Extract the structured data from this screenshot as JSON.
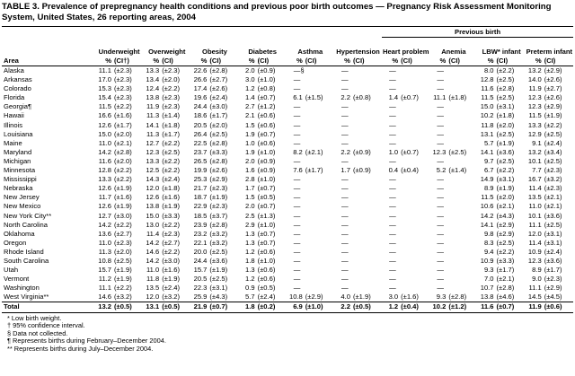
{
  "title": "TABLE 3. Prevalence of prepregnancy health conditions and previous poor birth outcomes — Pregnancy Risk Assessment Monitoring System, United States, 26 reporting areas, 2004",
  "super_header": "Previous birth",
  "area_label": "Area",
  "groups": [
    {
      "name": "Underweight",
      "pct": "%",
      "ci": "(CI†)"
    },
    {
      "name": "Overweight",
      "pct": "%",
      "ci": "(CI)"
    },
    {
      "name": "Obesity",
      "pct": "%",
      "ci": "(CI)"
    },
    {
      "name": "Diabetes",
      "pct": "%",
      "ci": "(CI)"
    },
    {
      "name": "Asthma",
      "pct": "%",
      "ci": "(CI)"
    },
    {
      "name": "Hypertension",
      "pct": "%",
      "ci": "(CI)"
    },
    {
      "name": "Heart problem",
      "pct": "%",
      "ci": "(CI)"
    },
    {
      "name": "Anemia",
      "pct": "%",
      "ci": "(CI)"
    },
    {
      "name": "LBW* infant",
      "pct": "%",
      "ci": "(CI)"
    },
    {
      "name": "Preterm infant",
      "pct": "%",
      "ci": "(CI)"
    }
  ],
  "rows": [
    {
      "area": "Alaska",
      "cells": [
        [
          "11.1",
          "(±2.3)"
        ],
        [
          "13.3",
          "(±2.3)"
        ],
        [
          "22.6",
          "(±2.8)"
        ],
        [
          "2.0",
          "(±0.9)"
        ],
        "—§",
        "—",
        "—",
        "—",
        [
          "8.0",
          "(±2.2)"
        ],
        [
          "13.2",
          "(±2.9)"
        ]
      ]
    },
    {
      "area": "Arkansas",
      "cells": [
        [
          "17.0",
          "(±2.3)"
        ],
        [
          "13.4",
          "(±2.0)"
        ],
        [
          "26.6",
          "(±2.7)"
        ],
        [
          "3.0",
          "(±1.0)"
        ],
        "—",
        "—",
        "—",
        "—",
        [
          "12.8",
          "(±2.5)"
        ],
        [
          "14.0",
          "(±2.6)"
        ]
      ]
    },
    {
      "area": "Colorado",
      "cells": [
        [
          "15.3",
          "(±2.3)"
        ],
        [
          "12.4",
          "(±2.2)"
        ],
        [
          "17.4",
          "(±2.6)"
        ],
        [
          "1.2",
          "(±0.8)"
        ],
        "—",
        "—",
        "—",
        "—",
        [
          "11.6",
          "(±2.8)"
        ],
        [
          "11.9",
          "(±2.7)"
        ]
      ]
    },
    {
      "area": "Florida",
      "cells": [
        [
          "15.4",
          "(±2.3)"
        ],
        [
          "13.8",
          "(±2.3)"
        ],
        [
          "19.6",
          "(±2.4)"
        ],
        [
          "1.4",
          "(±0.7)"
        ],
        [
          "6.1",
          "(±1.5)"
        ],
        [
          "2.2",
          "(±0.8)"
        ],
        [
          "1.4",
          "(±0.7)"
        ],
        [
          "11.1",
          "(±1.8)"
        ],
        [
          "11.5",
          "(±2.5)"
        ],
        [
          "12.3",
          "(±2.6)"
        ]
      ]
    },
    {
      "area": "Georgia¶",
      "cells": [
        [
          "11.5",
          "(±2.2)"
        ],
        [
          "11.9",
          "(±2.3)"
        ],
        [
          "24.4",
          "(±3.0)"
        ],
        [
          "2.7",
          "(±1.2)"
        ],
        "—",
        "—",
        "—",
        "—",
        [
          "15.0",
          "(±3.1)"
        ],
        [
          "12.3",
          "(±2.9)"
        ]
      ]
    },
    {
      "area": "Hawaii",
      "cells": [
        [
          "16.6",
          "(±1.6)"
        ],
        [
          "11.3",
          "(±1.4)"
        ],
        [
          "18.6",
          "(±1.7)"
        ],
        [
          "2.1",
          "(±0.6)"
        ],
        "—",
        "—",
        "—",
        "—",
        [
          "10.2",
          "(±1.8)"
        ],
        [
          "11.5",
          "(±1.9)"
        ]
      ]
    },
    {
      "area": "Illinois",
      "cells": [
        [
          "12.6",
          "(±1.7)"
        ],
        [
          "14.1",
          "(±1.8)"
        ],
        [
          "20.5",
          "(±2.0)"
        ],
        [
          "1.5",
          "(±0.6)"
        ],
        "—",
        "—",
        "—",
        "—",
        [
          "11.8",
          "(±2.0)"
        ],
        [
          "13.3",
          "(±2.2)"
        ]
      ]
    },
    {
      "area": "Louisiana",
      "cells": [
        [
          "15.0",
          "(±2.0)"
        ],
        [
          "11.3",
          "(±1.7)"
        ],
        [
          "26.4",
          "(±2.5)"
        ],
        [
          "1.9",
          "(±0.7)"
        ],
        "—",
        "—",
        "—",
        "—",
        [
          "13.1",
          "(±2.5)"
        ],
        [
          "12.9",
          "(±2.5)"
        ]
      ]
    },
    {
      "area": "Maine",
      "cells": [
        [
          "11.0",
          "(±2.1)"
        ],
        [
          "12.7",
          "(±2.2)"
        ],
        [
          "22.5",
          "(±2.8)"
        ],
        [
          "1.0",
          "(±0.6)"
        ],
        "—",
        "—",
        "—",
        "—",
        [
          "5.7",
          "(±1.9)"
        ],
        [
          "9.1",
          "(±2.4)"
        ]
      ]
    },
    {
      "area": "Maryland",
      "cells": [
        [
          "14.2",
          "(±2.8)"
        ],
        [
          "12.3",
          "(±2.5)"
        ],
        [
          "23.7",
          "(±3.3)"
        ],
        [
          "1.9",
          "(±1.0)"
        ],
        [
          "8.2",
          "(±2.1)"
        ],
        [
          "2.2",
          "(±0.9)"
        ],
        [
          "1.0",
          "(±0.7)"
        ],
        [
          "12.3",
          "(±2.5)"
        ],
        [
          "14.1",
          "(±3.6)"
        ],
        [
          "13.2",
          "(±3.4)"
        ]
      ]
    },
    {
      "area": "Michigan",
      "cells": [
        [
          "11.6",
          "(±2.0)"
        ],
        [
          "13.3",
          "(±2.2)"
        ],
        [
          "26.5",
          "(±2.8)"
        ],
        [
          "2.0",
          "(±0.9)"
        ],
        "—",
        "—",
        "—",
        "—",
        [
          "9.7",
          "(±2.5)"
        ],
        [
          "10.1",
          "(±2.5)"
        ]
      ]
    },
    {
      "area": "Minnesota",
      "cells": [
        [
          "12.8",
          "(±2.2)"
        ],
        [
          "12.5",
          "(±2.2)"
        ],
        [
          "19.9",
          "(±2.6)"
        ],
        [
          "1.6",
          "(±0.9)"
        ],
        [
          "7.6",
          "(±1.7)"
        ],
        [
          "1.7",
          "(±0.9)"
        ],
        [
          "0.4",
          "(±0.4)"
        ],
        [
          "5.2",
          "(±1.4)"
        ],
        [
          "6.7",
          "(±2.2)"
        ],
        [
          "7.7",
          "(±2.3)"
        ]
      ]
    },
    {
      "area": "Mississippi",
      "cells": [
        [
          "13.3",
          "(±2.2)"
        ],
        [
          "14.3",
          "(±2.4)"
        ],
        [
          "25.3",
          "(±2.9)"
        ],
        [
          "2.8",
          "(±1.0)"
        ],
        "—",
        "—",
        "—",
        "—",
        [
          "14.9",
          "(±3.1)"
        ],
        [
          "16.7",
          "(±3.2)"
        ]
      ]
    },
    {
      "area": "Nebraska",
      "cells": [
        [
          "12.6",
          "(±1.9)"
        ],
        [
          "12.0",
          "(±1.8)"
        ],
        [
          "21.7",
          "(±2.3)"
        ],
        [
          "1.7",
          "(±0.7)"
        ],
        "—",
        "—",
        "—",
        "—",
        [
          "8.9",
          "(±1.9)"
        ],
        [
          "11.4",
          "(±2.3)"
        ]
      ]
    },
    {
      "area": "New Jersey",
      "cells": [
        [
          "11.7",
          "(±1.6)"
        ],
        [
          "12.6",
          "(±1.6)"
        ],
        [
          "18.7",
          "(±1.9)"
        ],
        [
          "1.5",
          "(±0.5)"
        ],
        "—",
        "—",
        "—",
        "—",
        [
          "11.5",
          "(±2.0)"
        ],
        [
          "13.5",
          "(±2.1)"
        ]
      ]
    },
    {
      "area": "New Mexico",
      "cells": [
        [
          "12.6",
          "(±1.9)"
        ],
        [
          "13.8",
          "(±1.9)"
        ],
        [
          "22.9",
          "(±2.3)"
        ],
        [
          "2.0",
          "(±0.7)"
        ],
        "—",
        "—",
        "—",
        "—",
        [
          "10.6",
          "(±2.1)"
        ],
        [
          "11.0",
          "(±2.1)"
        ]
      ]
    },
    {
      "area": "New York City**",
      "cells": [
        [
          "12.7",
          "(±3.0)"
        ],
        [
          "15.0",
          "(±3.3)"
        ],
        [
          "18.5",
          "(±3.7)"
        ],
        [
          "2.5",
          "(±1.3)"
        ],
        "—",
        "—",
        "—",
        "—",
        [
          "14.2",
          "(±4.3)"
        ],
        [
          "10.1",
          "(±3.6)"
        ]
      ]
    },
    {
      "area": "North Carolina",
      "cells": [
        [
          "14.2",
          "(±2.2)"
        ],
        [
          "13.0",
          "(±2.2)"
        ],
        [
          "23.9",
          "(±2.8)"
        ],
        [
          "2.9",
          "(±1.0)"
        ],
        "—",
        "—",
        "—",
        "—",
        [
          "14.1",
          "(±2.9)"
        ],
        [
          "11.1",
          "(±2.5)"
        ]
      ]
    },
    {
      "area": "Oklahoma",
      "cells": [
        [
          "13.6",
          "(±2.7)"
        ],
        [
          "11.4",
          "(±2.3)"
        ],
        [
          "23.2",
          "(±3.2)"
        ],
        [
          "1.3",
          "(±0.7)"
        ],
        "—",
        "—",
        "—",
        "—",
        [
          "9.8",
          "(±2.9)"
        ],
        [
          "12.0",
          "(±3.1)"
        ]
      ]
    },
    {
      "area": "Oregon",
      "cells": [
        [
          "11.0",
          "(±2.3)"
        ],
        [
          "14.2",
          "(±2.7)"
        ],
        [
          "22.1",
          "(±3.2)"
        ],
        [
          "1.3",
          "(±0.7)"
        ],
        "—",
        "—",
        "—",
        "—",
        [
          "8.3",
          "(±2.5)"
        ],
        [
          "11.4",
          "(±3.1)"
        ]
      ]
    },
    {
      "area": "Rhode Island",
      "cells": [
        [
          "11.3",
          "(±2.0)"
        ],
        [
          "14.6",
          "(±2.2)"
        ],
        [
          "20.0",
          "(±2.5)"
        ],
        [
          "1.2",
          "(±0.6)"
        ],
        "—",
        "—",
        "—",
        "—",
        [
          "9.4",
          "(±2.2)"
        ],
        [
          "10.9",
          "(±2.4)"
        ]
      ]
    },
    {
      "area": "South Carolina",
      "cells": [
        [
          "10.8",
          "(±2.5)"
        ],
        [
          "14.2",
          "(±3.0)"
        ],
        [
          "24.4",
          "(±3.6)"
        ],
        [
          "1.8",
          "(±1.0)"
        ],
        "—",
        "—",
        "—",
        "—",
        [
          "10.9",
          "(±3.3)"
        ],
        [
          "12.3",
          "(±3.6)"
        ]
      ]
    },
    {
      "area": "Utah",
      "cells": [
        [
          "15.7",
          "(±1.9)"
        ],
        [
          "11.0",
          "(±1.6)"
        ],
        [
          "15.7",
          "(±1.9)"
        ],
        [
          "1.3",
          "(±0.6)"
        ],
        "—",
        "—",
        "—",
        "—",
        [
          "9.3",
          "(±1.7)"
        ],
        [
          "8.9",
          "(±1.7)"
        ]
      ]
    },
    {
      "area": "Vermont",
      "cells": [
        [
          "11.2",
          "(±1.9)"
        ],
        [
          "11.8",
          "(±1.9)"
        ],
        [
          "20.5",
          "(±2.5)"
        ],
        [
          "1.2",
          "(±0.6)"
        ],
        "—",
        "—",
        "—",
        "—",
        [
          "7.0",
          "(±2.1)"
        ],
        [
          "9.0",
          "(±2.3)"
        ]
      ]
    },
    {
      "area": "Washington",
      "cells": [
        [
          "11.1",
          "(±2.2)"
        ],
        [
          "13.5",
          "(±2.4)"
        ],
        [
          "22.3",
          "(±3.1)"
        ],
        [
          "0.9",
          "(±0.5)"
        ],
        "—",
        "—",
        "—",
        "—",
        [
          "10.7",
          "(±2.8)"
        ],
        [
          "11.1",
          "(±2.9)"
        ]
      ]
    },
    {
      "area": "West Virginia**",
      "cells": [
        [
          "14.6",
          "(±3.2)"
        ],
        [
          "12.0",
          "(±3.2)"
        ],
        [
          "25.9",
          "(±4.3)"
        ],
        [
          "5.7",
          "(±2.4)"
        ],
        [
          "10.8",
          "(±2.9)"
        ],
        [
          "4.0",
          "(±1.9)"
        ],
        [
          "3.0",
          "(±1.6)"
        ],
        [
          "9.3",
          "(±2.8)"
        ],
        [
          "13.8",
          "(±4.6)"
        ],
        [
          "14.5",
          "(±4.5)"
        ]
      ]
    },
    {
      "area": "Total",
      "cells": [
        [
          "13.2",
          "(±0.5)"
        ],
        [
          "13.1",
          "(±0.5)"
        ],
        [
          "21.9",
          "(±0.7)"
        ],
        [
          "1.8",
          "(±0.2)"
        ],
        [
          "6.9",
          "(±1.0)"
        ],
        [
          "2.2",
          "(±0.5)"
        ],
        [
          "1.2",
          "(±0.4)"
        ],
        [
          "10.2",
          "(±1.2)"
        ],
        [
          "11.6",
          "(±0.7)"
        ],
        [
          "11.9",
          "(±0.6)"
        ]
      ]
    }
  ],
  "footnotes": [
    "* Low birth weight.",
    "† 95% confidence interval.",
    "§ Data not collected.",
    "¶ Represents births during February–December 2004.",
    "** Represents births during July–December 2004."
  ]
}
